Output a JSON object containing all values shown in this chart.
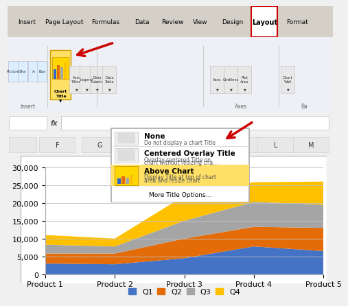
{
  "categories": [
    "Product 1",
    "Product 2",
    "Product 3",
    "Product 4",
    "Product 5"
  ],
  "Q1": [
    3000,
    2800,
    4500,
    7800,
    6500
  ],
  "Q2": [
    2800,
    3000,
    5500,
    5500,
    6500
  ],
  "Q3": [
    2500,
    2000,
    5000,
    7000,
    6500
  ],
  "Q4": [
    2700,
    2200,
    7000,
    5500,
    6500
  ],
  "colors": {
    "Q1": "#4472C4",
    "Q2": "#E36C09",
    "Q3": "#A5A5A5",
    "Q4": "#FFC000"
  },
  "ylim": [
    0,
    30000
  ],
  "yticks": [
    0,
    5000,
    10000,
    15000,
    20000,
    25000,
    30000
  ],
  "plot_bg": "#FFFFFF",
  "grid_color": "#C0C0C0",
  "tick_fontsize": 8,
  "legend_fontsize": 8,
  "ribbon_bg": "#F0F0F0",
  "ribbon_body": "#EEF0F5",
  "tab_bar_color": "#D4D0C8",
  "tab_highlight": "#FFFFFF",
  "tab_border_color": "#CC0000",
  "yellow_highlight": "#FFE066",
  "yellow_icon": "#FFD700",
  "menu_bg": "#FFFFFF",
  "arrow_color": "#CC0000"
}
